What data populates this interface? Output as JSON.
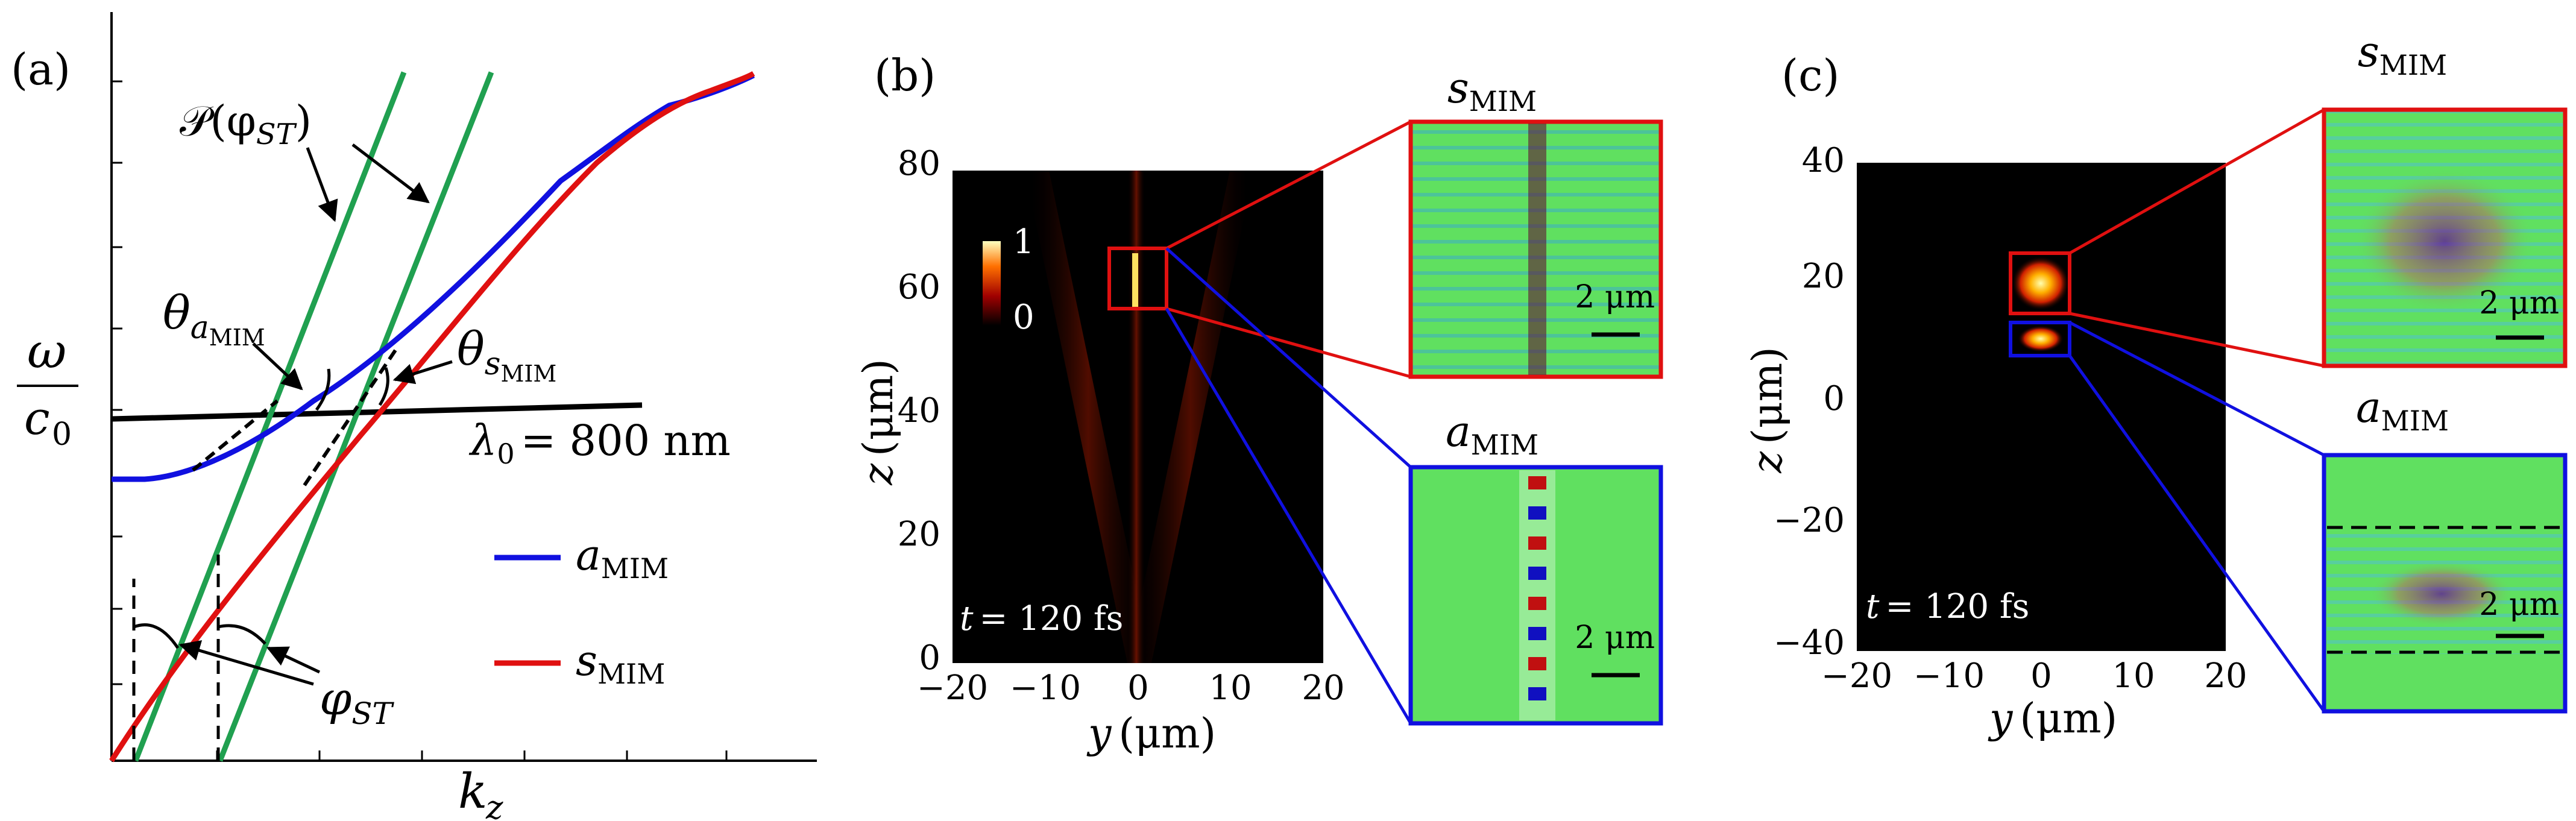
{
  "panels": {
    "a": {
      "label": "(a)",
      "xlabel_sym": "k",
      "xlabel_sub": "z",
      "ylabel_num": "ω",
      "ylabel_den_sym": "c",
      "ylabel_den_sub": "0",
      "projection_label": "𝒫(φ",
      "projection_sub": "ST",
      "projection_close": ")",
      "theta_sym": "θ",
      "theta_a_sub": "a",
      "theta_a_subsub": "MIM",
      "theta_s_sub": "s",
      "theta_s_subsub": "MIM",
      "wavelength_sym": "λ",
      "wavelength_sub": "0",
      "wavelength_value": "= 800 nm",
      "phi_sym": "φ",
      "phi_sub": "ST",
      "legend": [
        {
          "sym": "a",
          "sub": "MIM",
          "color": "#1010e0"
        },
        {
          "sym": "s",
          "sub": "MIM",
          "color": "#e01010"
        }
      ],
      "line_colors": {
        "dispersion_a": "#1010e0",
        "dispersion_s": "#e01010",
        "projection": "#20a050",
        "light_line": "#000000"
      }
    },
    "b": {
      "label": "(b)",
      "xlabel_sym": "y",
      "xlabel_unit": "(μm)",
      "ylabel_sym": "z",
      "ylabel_unit": "(μm)",
      "xticks": [
        "−20",
        "−10",
        "0",
        "10",
        "20"
      ],
      "yticks": [
        "0",
        "20",
        "40",
        "60",
        "80"
      ],
      "time_sym": "t",
      "time_value": "= 120 fs",
      "colorbar_max": "1",
      "colorbar_min": "0",
      "inset_top_title_sym": "s",
      "inset_top_title_sub": "MIM",
      "inset_bottom_title_sym": "a",
      "inset_bottom_title_sub": "MIM",
      "scalebar_label": "2 μm"
    },
    "c": {
      "label": "(c)",
      "xlabel_sym": "y",
      "xlabel_unit": "(μm)",
      "ylabel_sym": "z",
      "ylabel_unit": "(μm)",
      "xticks": [
        "−20",
        "−10",
        "0",
        "10",
        "20"
      ],
      "yticks": [
        "−40",
        "−20",
        "0",
        "20",
        "40"
      ],
      "time_sym": "t",
      "time_value": "= 120 fs",
      "inset_top_title_sym": "s",
      "inset_top_title_sub": "MIM",
      "inset_bottom_title_sym": "a",
      "inset_bottom_title_sub": "MIM",
      "scalebar_label": "2 μm"
    }
  },
  "colors": {
    "inset_top_frame": "#e01010",
    "inset_bottom_frame": "#1010e0",
    "field_background": "#60e060"
  }
}
